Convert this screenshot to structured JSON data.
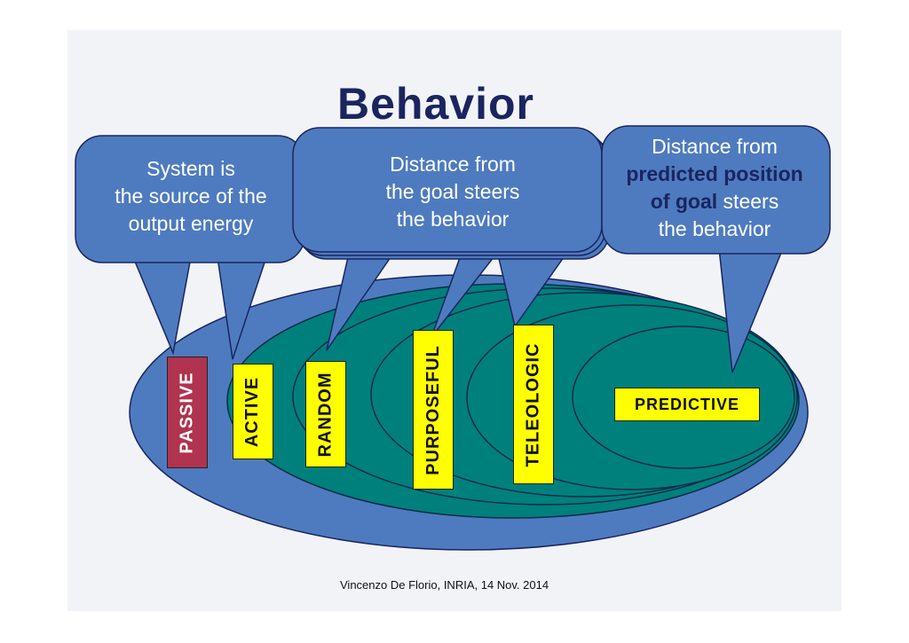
{
  "title": "Behavior",
  "footer": "Vincenzo De Florio, INRIA, 14 Nov. 2014",
  "colors": {
    "outer_ellipse": "#4e7bbf",
    "inner_ellipses": "#00807d",
    "callouts": "#4e7bbf",
    "label_yellow": "#ffff00",
    "label_passive": "#b0334f",
    "title_color": "#1a2560"
  },
  "labels": {
    "passive": "PASSIVE",
    "active": "ACTIVE",
    "random": "RANDOM",
    "purposeful": "PURPOSEFUL",
    "teleologic": "TELEOLOGIC",
    "predictive": "PREDICTIVE"
  },
  "callouts": {
    "c1": {
      "line1": "System is",
      "line2": "the source of the",
      "line3": "output energy"
    },
    "c2": {
      "line1": "Distance from",
      "line2": "the goal steers",
      "line3": "the behavior"
    },
    "c3": {
      "line1": "Distance from",
      "line2": "predicted position",
      "line3_bold": "of goal",
      "line3_rest": " steers",
      "line4": "the behavior"
    }
  }
}
